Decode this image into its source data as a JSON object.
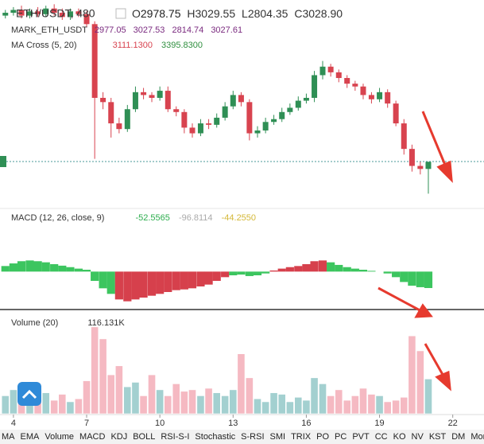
{
  "header": {
    "symbol": "ETH/USDT, 480",
    "ohlc": [
      {
        "key": "O",
        "value": "2978.75"
      },
      {
        "key": "H",
        "value": "3029.55"
      },
      {
        "key": "L",
        "value": "2804.35"
      },
      {
        "key": "C",
        "value": "3028.90"
      }
    ],
    "mark": {
      "name": "MARK_ETH_USDT",
      "values": [
        "2977.05",
        "3027.53",
        "2814.74",
        "3027.61"
      ]
    },
    "ma_cross": {
      "name": "MA Cross (5, 20)",
      "values": [
        "3111.1300",
        "3395.8300"
      ]
    }
  },
  "chart_data": [
    {
      "type": "candlestick",
      "x": [
        3.67,
        4,
        4.33,
        4.67,
        5,
        5.33,
        5.67,
        6,
        6.33,
        6.67,
        7,
        7.33,
        7.67,
        8,
        8.33,
        8.67,
        9,
        9.33,
        9.67,
        10,
        10.33,
        10.67,
        11,
        11.33,
        11.67,
        12,
        12.33,
        12.67,
        13,
        13.33,
        13.67,
        14,
        14.33,
        14.67,
        15,
        15.33,
        15.67,
        16,
        16.33,
        16.67,
        17,
        17.33,
        17.67,
        18,
        18.33,
        18.67,
        19,
        19.33,
        19.67,
        20,
        20.33,
        20.67,
        21
      ],
      "open": [
        4060,
        4080,
        4100,
        4060,
        4090,
        4070,
        4110,
        4080,
        4050,
        4090,
        4070,
        4000,
        3480,
        3450,
        3300,
        3260,
        3400,
        3520,
        3500,
        3480,
        3530,
        3400,
        3380,
        3270,
        3230,
        3300,
        3290,
        3340,
        3420,
        3500,
        3450,
        3230,
        3250,
        3310,
        3330,
        3380,
        3410,
        3460,
        3480,
        3640,
        3700,
        3660,
        3620,
        3580,
        3560,
        3500,
        3470,
        3520,
        3440,
        3300,
        3120,
        3000,
        2978.75
      ],
      "high": [
        4100,
        4120,
        4130,
        4110,
        4120,
        4130,
        4140,
        4110,
        4110,
        4110,
        4090,
        4020,
        3520,
        3480,
        3340,
        3430,
        3560,
        3550,
        3520,
        3560,
        3560,
        3420,
        3400,
        3300,
        3330,
        3330,
        3370,
        3450,
        3530,
        3520,
        3470,
        3280,
        3340,
        3360,
        3410,
        3440,
        3490,
        3510,
        3670,
        3740,
        3720,
        3680,
        3640,
        3600,
        3580,
        3520,
        3550,
        3540,
        3460,
        3330,
        3150,
        3030,
        3029.55
      ],
      "low": [
        4040,
        4060,
        4040,
        4040,
        4050,
        4050,
        4060,
        4030,
        4030,
        4050,
        3980,
        3050,
        3400,
        3200,
        3230,
        3240,
        3380,
        3470,
        3450,
        3460,
        3380,
        3350,
        3230,
        3200,
        3210,
        3260,
        3270,
        3320,
        3400,
        3420,
        3180,
        3200,
        3230,
        3290,
        3310,
        3360,
        3390,
        3440,
        3450,
        3610,
        3630,
        3590,
        3550,
        3530,
        3470,
        3440,
        3450,
        3410,
        3280,
        3080,
        2960,
        2940,
        2804.35
      ],
      "close": [
        4080,
        4100,
        4060,
        4090,
        4070,
        4110,
        4080,
        4050,
        4090,
        4070,
        4000,
        3480,
        3450,
        3300,
        3260,
        3400,
        3520,
        3500,
        3480,
        3530,
        3400,
        3380,
        3270,
        3230,
        3300,
        3290,
        3340,
        3420,
        3500,
        3450,
        3230,
        3250,
        3310,
        3330,
        3380,
        3410,
        3460,
        3480,
        3640,
        3700,
        3660,
        3620,
        3580,
        3560,
        3500,
        3470,
        3520,
        3440,
        3300,
        3120,
        3000,
        2978.75,
        3028.9
      ],
      "up_color": "#2f8f55",
      "down_color": "#d8434f",
      "xlim": [
        3.45,
        23.28
      ],
      "ylim": [
        2700,
        4170
      ],
      "xticks": [
        4,
        7,
        10,
        13,
        16,
        19,
        22
      ]
    },
    {
      "type": "histogram_bars",
      "title": "MACD (12, 26, close, 9)",
      "legend_values": [
        "-52.5565",
        "-96.8114",
        "-44.2550"
      ],
      "legend_colors": [
        "#2dae4e",
        "#aaaaaa",
        "#d4b838"
      ],
      "values": [
        15,
        22,
        28,
        30,
        28,
        25,
        20,
        16,
        12,
        8,
        5,
        -25,
        -45,
        -60,
        -75,
        -80,
        -75,
        -70,
        -65,
        -60,
        -55,
        -50,
        -48,
        -45,
        -40,
        -35,
        -25,
        -15,
        -10,
        -8,
        -12,
        -10,
        -5,
        3,
        8,
        12,
        15,
        20,
        28,
        30,
        25,
        18,
        12,
        8,
        5,
        2,
        0,
        -5,
        -15,
        -28,
        -38,
        -42,
        -44.255
      ],
      "colors": [
        "#3cc55f",
        "#3cc55f",
        "#3cc55f",
        "#3cc55f",
        "#3cc55f",
        "#3cc55f",
        "#3cc55f",
        "#3cc55f",
        "#3cc55f",
        "#3cc55f",
        "#3cc55f",
        "#3cc55f",
        "#3cc55f",
        "#3cc55f",
        "#d6404c",
        "#d6404c",
        "#d6404c",
        "#d6404c",
        "#d6404c",
        "#d6404c",
        "#d6404c",
        "#d6404c",
        "#d6404c",
        "#d6404c",
        "#d6404c",
        "#d6404c",
        "#d6404c",
        "#d6404c",
        "#3cc55f",
        "#3cc55f",
        "#3cc55f",
        "#3cc55f",
        "#3cc55f",
        "#d6404c",
        "#d6404c",
        "#d6404c",
        "#d6404c",
        "#d6404c",
        "#d6404c",
        "#d6404c",
        "#3cc55f",
        "#3cc55f",
        "#3cc55f",
        "#3cc55f",
        "#3cc55f",
        "#3cc55f",
        "#3cc55f",
        "#3cc55f",
        "#3cc55f",
        "#3cc55f",
        "#3cc55f",
        "#3cc55f",
        "#3cc55f"
      ],
      "ylim": [
        -100,
        170
      ]
    },
    {
      "type": "volume_bars",
      "title": "Volume (20)",
      "legend_value": "116.131K",
      "values": [
        60,
        80,
        50,
        90,
        55,
        70,
        45,
        65,
        40,
        50,
        110,
        290,
        250,
        130,
        160,
        90,
        105,
        60,
        130,
        80,
        60,
        100,
        75,
        80,
        60,
        85,
        70,
        60,
        80,
        200,
        120,
        50,
        40,
        70,
        65,
        40,
        55,
        45,
        120,
        100,
        60,
        80,
        45,
        60,
        85,
        65,
        60,
        40,
        45,
        55,
        260,
        210,
        116.131
      ],
      "up_color": "#a3d0d0",
      "down_color": "#f5b9c2",
      "ylim": [
        0,
        340
      ]
    }
  ],
  "toolbar": [
    "MA",
    "EMA",
    "Volume",
    "MACD",
    "KDJ",
    "BOLL",
    "RSI-S-I",
    "Stochastic",
    "S-RSI",
    "SMI",
    "TRIX",
    "PO",
    "PC",
    "PVT",
    "CC",
    "KO",
    "NV",
    "KST",
    "DM",
    "Momentum"
  ]
}
